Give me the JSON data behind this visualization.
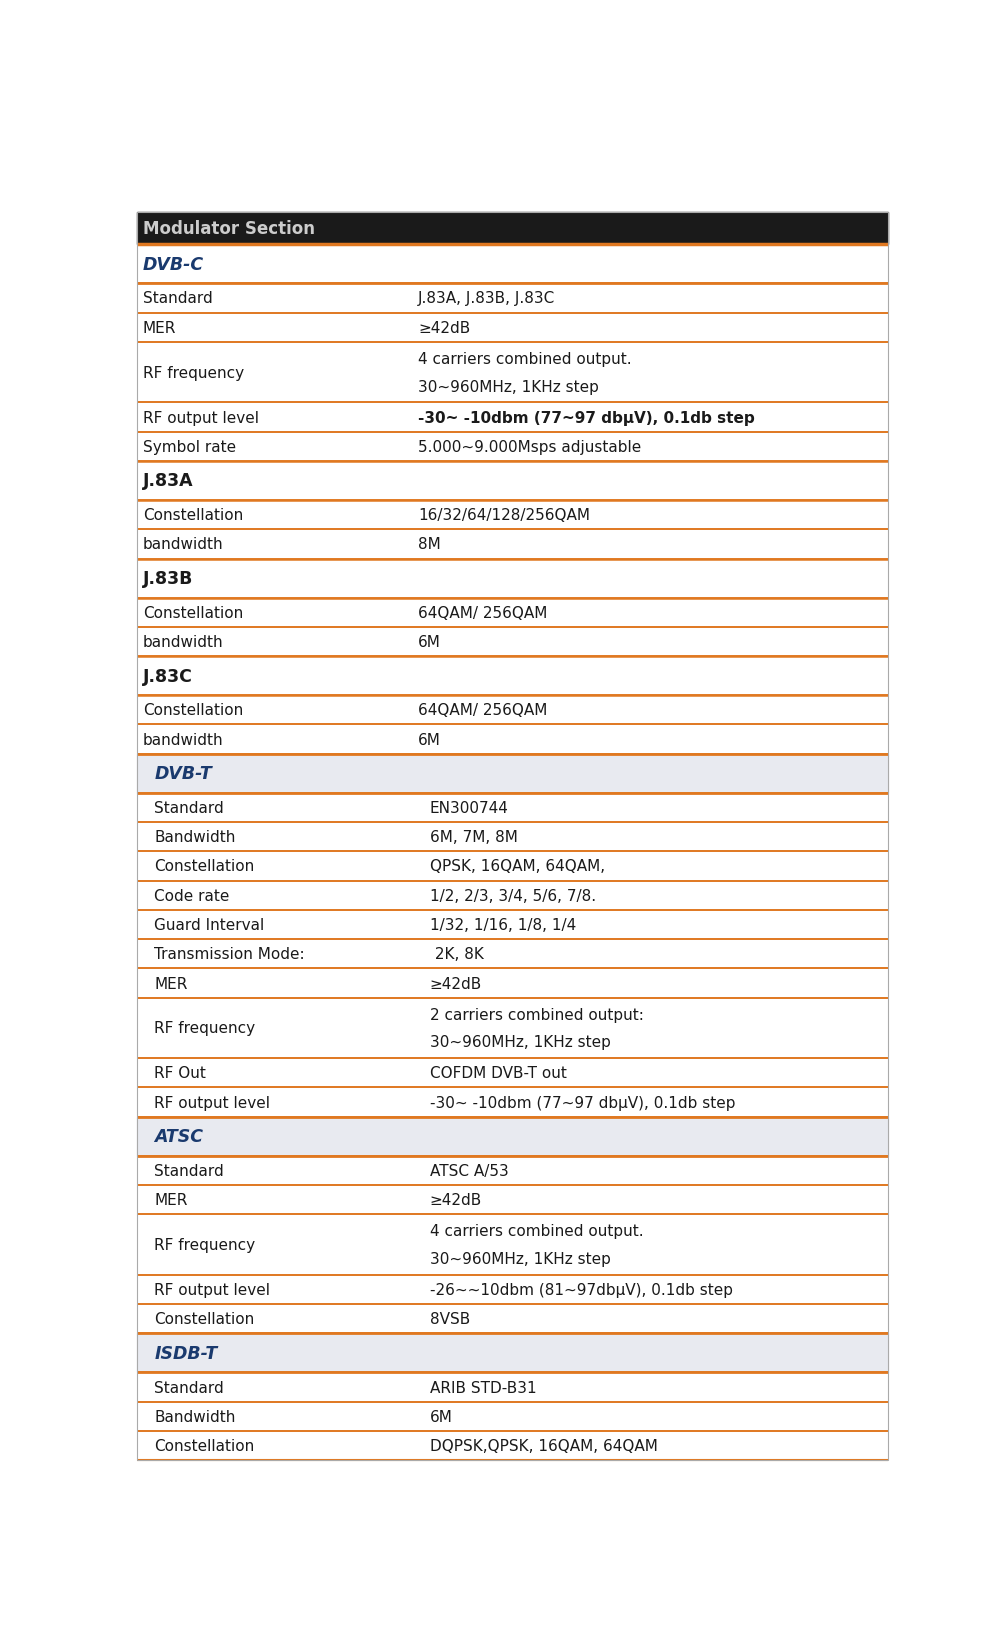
{
  "title": "Modulator Section",
  "title_bg": "#1a1a1a",
  "title_color": "#cccccc",
  "orange": "#e07820",
  "dark_blue": "#1a3a6e",
  "fig_bg": "#ffffff",
  "rows": [
    {
      "type": "section_header",
      "col1": "DVB-C",
      "col2": "",
      "indent": 0
    },
    {
      "type": "data",
      "col1": "Standard",
      "col2": "J.83A, J.83B, J.83C",
      "indent": 0
    },
    {
      "type": "data",
      "col1": "MER",
      "col2": "≥42dB",
      "indent": 0
    },
    {
      "type": "data_multiline",
      "col1": "RF frequency",
      "col2": "4 carriers combined output.\n30~960MHz, 1KHz step",
      "indent": 0
    },
    {
      "type": "data_bold_val",
      "col1": "RF output level",
      "col2": "-30~ -10dbm (77~97 dbμV), 0.1db step",
      "indent": 0
    },
    {
      "type": "data",
      "col1": "Symbol rate",
      "col2": "5.000~9.000Msps adjustable",
      "indent": 0
    },
    {
      "type": "subsection_header",
      "col1": "J.83A",
      "col2": "",
      "indent": 0
    },
    {
      "type": "data",
      "col1": "Constellation",
      "col2": "16/32/64/128/256QAM",
      "indent": 0
    },
    {
      "type": "data",
      "col1": "bandwidth",
      "col2": "8M",
      "indent": 0
    },
    {
      "type": "subsection_header",
      "col1": "J.83B",
      "col2": "",
      "indent": 0
    },
    {
      "type": "data",
      "col1": "Constellation",
      "col2": "64QAM/ 256QAM",
      "indent": 0
    },
    {
      "type": "data",
      "col1": "bandwidth",
      "col2": "6M",
      "indent": 0
    },
    {
      "type": "subsection_header",
      "col1": "J.83C",
      "col2": "",
      "indent": 0
    },
    {
      "type": "data",
      "col1": "Constellation",
      "col2": "64QAM/ 256QAM",
      "indent": 0
    },
    {
      "type": "data",
      "col1": "bandwidth",
      "col2": "6M",
      "indent": 0
    },
    {
      "type": "section_header",
      "col1": "DVB-T",
      "col2": "",
      "indent": 1
    },
    {
      "type": "data",
      "col1": "Standard",
      "col2": "EN300744",
      "indent": 1
    },
    {
      "type": "data",
      "col1": "Bandwidth",
      "col2": "6M, 7M, 8M",
      "indent": 1
    },
    {
      "type": "data",
      "col1": "Constellation",
      "col2": "QPSK, 16QAM, 64QAM,",
      "indent": 1
    },
    {
      "type": "data",
      "col1": "Code rate",
      "col2": "1/2, 2/3, 3/4, 5/6, 7/8.",
      "indent": 1
    },
    {
      "type": "data",
      "col1": "Guard Interval",
      "col2": "1/32, 1/16, 1/8, 1/4",
      "indent": 1
    },
    {
      "type": "data",
      "col1": "Transmission Mode:",
      "col2": " 2K, 8K",
      "indent": 1
    },
    {
      "type": "data",
      "col1": "MER",
      "col2": "≥42dB",
      "indent": 1
    },
    {
      "type": "data_multiline",
      "col1": "RF frequency",
      "col2": "2 carriers combined output:\n30~960MHz, 1KHz step",
      "indent": 1
    },
    {
      "type": "data",
      "col1": "RF Out",
      "col2": "COFDM DVB-T out",
      "indent": 1
    },
    {
      "type": "data",
      "col1": "RF output level",
      "col2": "-30~ -10dbm (77~97 dbμV), 0.1db step",
      "indent": 1
    },
    {
      "type": "section_header",
      "col1": "ATSC",
      "col2": "",
      "indent": 1
    },
    {
      "type": "data",
      "col1": "Standard",
      "col2": "ATSC A/53",
      "indent": 1
    },
    {
      "type": "data",
      "col1": "MER",
      "col2": "≥42dB",
      "indent": 1
    },
    {
      "type": "data_multiline",
      "col1": "RF frequency",
      "col2": "4 carriers combined output.\n30~960MHz, 1KHz step",
      "indent": 1
    },
    {
      "type": "data",
      "col1": "RF output level",
      "col2": "-26~~10dbm (81~97dbμV), 0.1db step",
      "indent": 1
    },
    {
      "type": "data",
      "col1": "Constellation",
      "col2": "8VSB",
      "indent": 1
    },
    {
      "type": "section_header",
      "col1": "ISDB-T",
      "col2": "",
      "indent": 1
    },
    {
      "type": "data",
      "col1": "Standard",
      "col2": "ARIB STD-B31",
      "indent": 1
    },
    {
      "type": "data",
      "col1": "Bandwidth",
      "col2": "6M",
      "indent": 1
    },
    {
      "type": "data",
      "col1": "Constellation",
      "col2": "DQPSK,QPSK, 16QAM, 64QAM",
      "indent": 1
    }
  ]
}
